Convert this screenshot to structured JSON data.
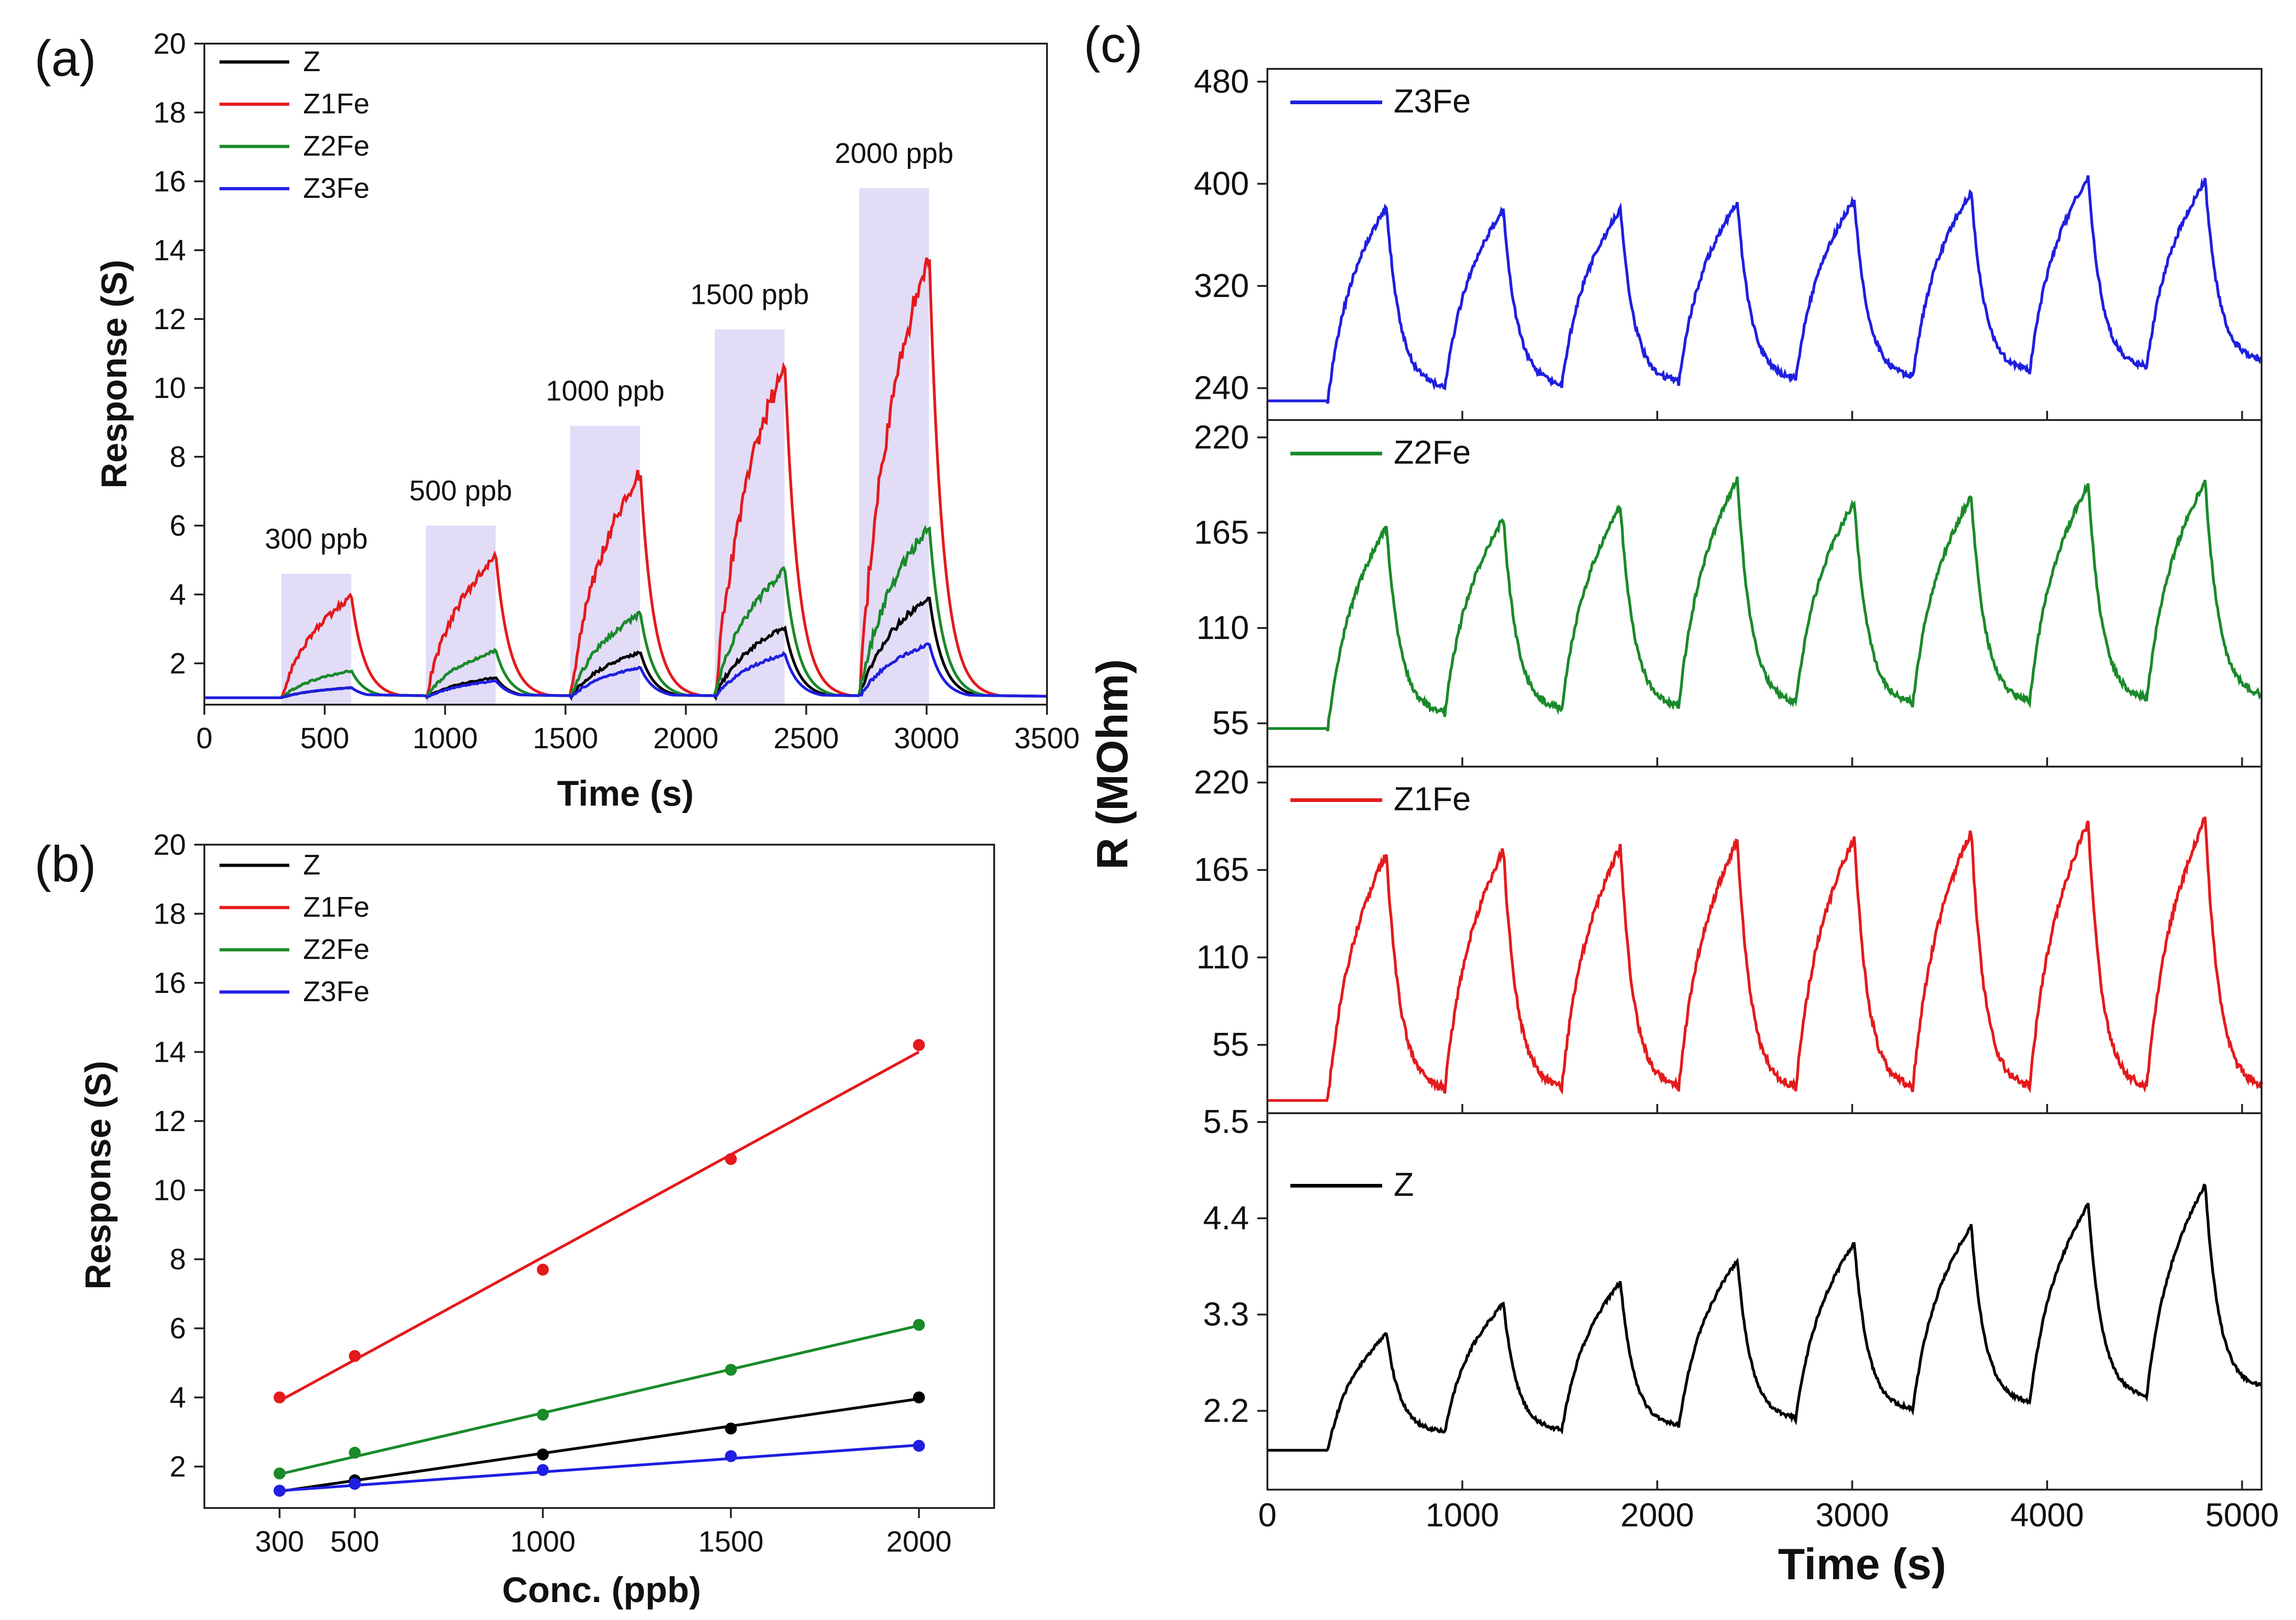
{
  "chart_data": [
    {
      "type": "line",
      "panel_label": "(a)",
      "title": "",
      "xlabel": "Time (s)",
      "ylabel": "Response (S)",
      "xlim": [
        0,
        3500
      ],
      "ylim": [
        0.8,
        20
      ],
      "xticks": [
        "0",
        "500",
        "1000",
        "1500",
        "2000",
        "2500",
        "3000",
        "3500"
      ],
      "yticks": [
        "2",
        "4",
        "6",
        "8",
        "10",
        "12",
        "14",
        "16",
        "18",
        "20"
      ],
      "legend_position": "top-left",
      "exposure_windows": [
        {
          "label": "300 ppb",
          "start": 320,
          "end": 610,
          "top": 4.6
        },
        {
          "label": "500 ppb",
          "start": 920,
          "end": 1210,
          "top": 6.0
        },
        {
          "label": "1000 ppb",
          "start": 1520,
          "end": 1810,
          "top": 8.9
        },
        {
          "label": "1500 ppb",
          "start": 2120,
          "end": 2410,
          "top": 11.7
        },
        {
          "label": "2000 ppb",
          "start": 2720,
          "end": 3010,
          "top": 15.8
        }
      ],
      "series": [
        {
          "name": "Z",
          "color": "#000000",
          "baseline": 1.0,
          "peaks": [
            1.3,
            1.6,
            2.35,
            3.1,
            4.0
          ]
        },
        {
          "name": "Z1Fe",
          "color": "#e41a1c",
          "baseline": 1.0,
          "peaks": [
            4.0,
            5.2,
            7.7,
            10.9,
            14.2
          ]
        },
        {
          "name": "Z2Fe",
          "color": "#1a8a2a",
          "baseline": 1.0,
          "peaks": [
            1.8,
            2.4,
            3.5,
            4.8,
            6.1
          ]
        },
        {
          "name": "Z3Fe",
          "color": "#1f1fe0",
          "baseline": 1.0,
          "peaks": [
            1.3,
            1.5,
            1.9,
            2.3,
            2.6
          ]
        }
      ]
    },
    {
      "type": "scatter",
      "panel_label": "(b)",
      "title": "",
      "xlabel": "Conc. (ppb)",
      "ylabel": "Response (S)",
      "xlim": [
        100,
        2200
      ],
      "ylim": [
        0.8,
        20
      ],
      "xticks": [
        "300",
        "500",
        "1000",
        "1500",
        "2000"
      ],
      "yticks": [
        "2",
        "4",
        "6",
        "8",
        "10",
        "12",
        "14",
        "16",
        "18",
        "20"
      ],
      "legend_position": "top-left",
      "x": [
        300,
        500,
        1000,
        1500,
        2000
      ],
      "series": [
        {
          "name": "Z",
          "color": "#000000",
          "values": [
            1.3,
            1.6,
            2.35,
            3.1,
            4.0
          ],
          "fit": [
            1.28,
            3.96
          ]
        },
        {
          "name": "Z1Fe",
          "color": "#e41a1c",
          "values": [
            4.0,
            5.2,
            7.7,
            10.9,
            14.2
          ],
          "fit": [
            3.9,
            14.0
          ]
        },
        {
          "name": "Z2Fe",
          "color": "#1a8a2a",
          "values": [
            1.8,
            2.4,
            3.5,
            4.8,
            6.1
          ],
          "fit": [
            1.78,
            6.08
          ]
        },
        {
          "name": "Z3Fe",
          "color": "#1f1fe0",
          "values": [
            1.3,
            1.5,
            1.9,
            2.3,
            2.6
          ],
          "fit": [
            1.3,
            2.62
          ]
        }
      ]
    },
    {
      "type": "line",
      "panel_label": "(c)",
      "title": "",
      "xlabel": "Time (s)",
      "ylabel": "R (MOhm)",
      "xlim": [
        0,
        5100
      ],
      "xticks": [
        "0",
        "1000",
        "2000",
        "3000",
        "4000",
        "5000"
      ],
      "cycle_starts": [
        310,
        910,
        1510,
        2110,
        2710,
        3310,
        3910,
        4510
      ],
      "cycle_length": 300,
      "subplots": [
        {
          "name": "Z3Fe",
          "color": "#1f1fe0",
          "ylim": [
            215,
            490
          ],
          "yticks": [
            "240",
            "320",
            "400",
            "480"
          ],
          "baseline": 230,
          "recover": [
            240,
            242,
            244,
            246,
            248,
            252,
            255,
            260
          ],
          "peaks": [
            385,
            382,
            382,
            388,
            390,
            396,
            408,
            405
          ]
        },
        {
          "name": "Z2Fe",
          "color": "#1a8a2a",
          "ylim": [
            30,
            230
          ],
          "yticks": [
            "55",
            "110",
            "165",
            "220"
          ],
          "baseline": 52,
          "recover": [
            60,
            62,
            64,
            66,
            66,
            67,
            68,
            70
          ],
          "peaks": [
            170,
            175,
            182,
            198,
            185,
            188,
            195,
            197
          ]
        },
        {
          "name": "Z1Fe",
          "color": "#e41a1c",
          "ylim": [
            12,
            230
          ],
          "yticks": [
            "55",
            "110",
            "165",
            "220"
          ],
          "baseline": 20,
          "recover": [
            26,
            27,
            27,
            27,
            27,
            27,
            27,
            27
          ],
          "peaks": [
            178,
            180,
            182,
            186,
            188,
            192,
            198,
            200
          ]
        },
        {
          "name": "Z",
          "color": "#000000",
          "ylim": [
            1.3,
            5.6
          ],
          "yticks": [
            "2.2",
            "3.3",
            "4.4",
            "5.5"
          ],
          "baseline": 1.75,
          "recover": [
            1.95,
            1.97,
            2.02,
            2.1,
            2.2,
            2.28,
            2.35,
            2.45
          ],
          "peaks": [
            3.1,
            3.45,
            3.7,
            3.95,
            4.15,
            4.35,
            4.6,
            4.82
          ]
        }
      ]
    }
  ]
}
